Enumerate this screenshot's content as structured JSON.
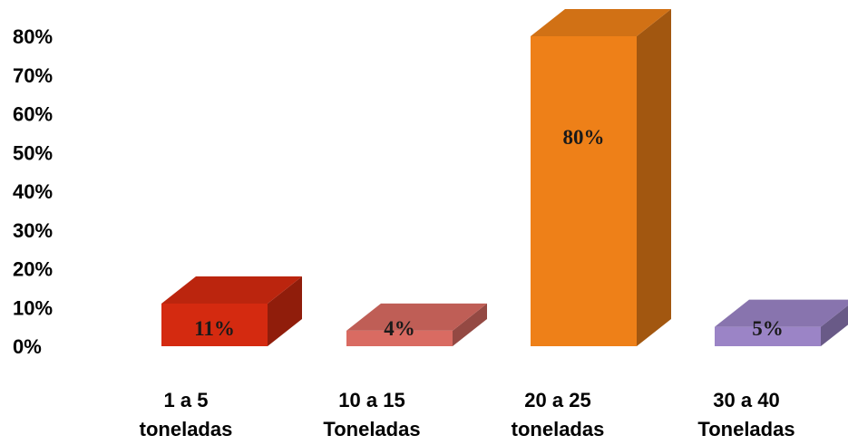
{
  "chart_data": {
    "type": "bar",
    "style": "3d",
    "categories": [
      [
        "1 a 5",
        "toneladas"
      ],
      [
        "10 a 15",
        "Toneladas"
      ],
      [
        "20 a 25",
        "toneladas"
      ],
      [
        "30 a 40",
        "Toneladas"
      ]
    ],
    "values": [
      11,
      4,
      80,
      5
    ],
    "data_labels": [
      "11%",
      "4%",
      "80%",
      "5%"
    ],
    "colors": [
      "#d42a10",
      "#d96b62",
      "#ee8018",
      "#9b84c6"
    ],
    "yticks": [
      "0%",
      "10%",
      "20%",
      "30%",
      "40%",
      "50%",
      "60%",
      "70%",
      "80%"
    ],
    "ylim": [
      0,
      80
    ],
    "grid": false,
    "legend": "none",
    "title": "",
    "xlabel": "",
    "ylabel": ""
  }
}
